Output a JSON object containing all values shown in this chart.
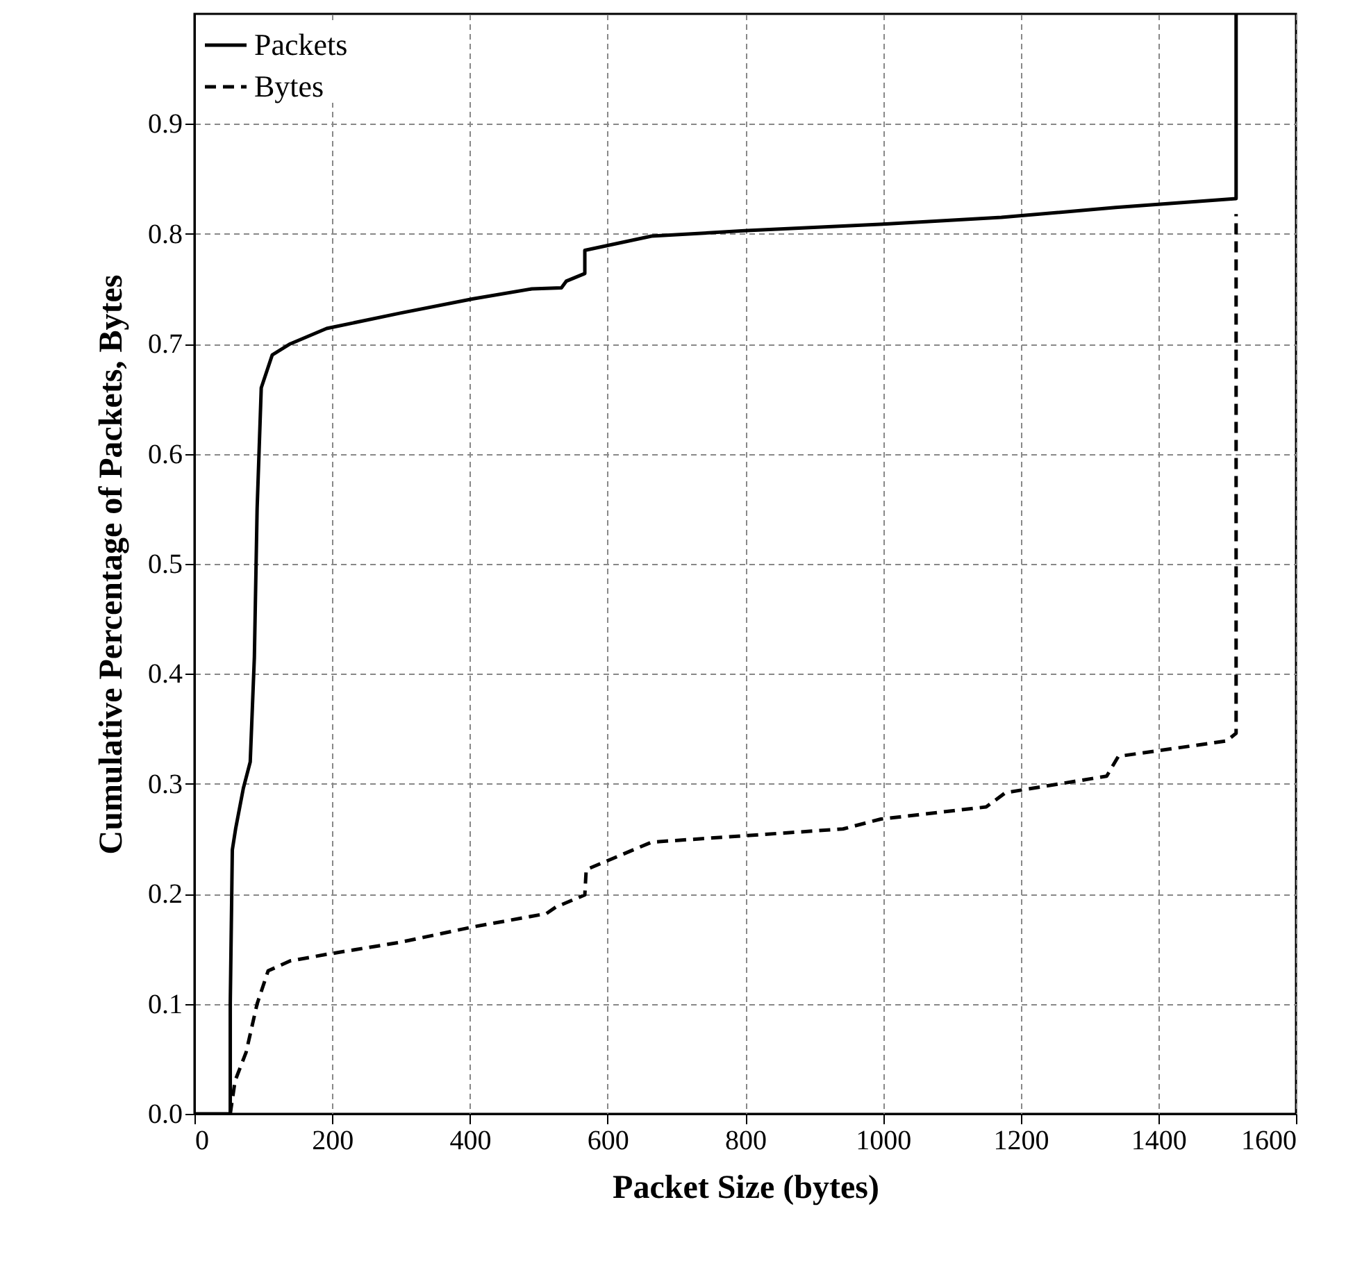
{
  "chart_data": {
    "type": "line",
    "xlabel": "Packet Size (bytes)",
    "ylabel": "Cumulative Percentage of Packets, Bytes",
    "xlim": [
      0,
      1600
    ],
    "ylim": [
      0,
      1
    ],
    "xticks": [
      0,
      200,
      400,
      600,
      800,
      1000,
      1200,
      1400,
      1600
    ],
    "yticks": [
      {
        "value": 0,
        "label": "0.0"
      },
      0.1,
      0.2,
      0.3,
      0.4,
      0.5,
      0.6,
      0.7,
      0.8,
      0.9
    ],
    "grid": true,
    "legend": "top left",
    "marker": "none",
    "series": [
      {
        "name": "Packets",
        "color": "#000000",
        "line_style": "solid",
        "x": [
          0,
          52,
          52,
          55,
          60,
          71,
          81,
          87,
          91,
          97,
          113,
          139,
          192,
          299,
          405,
          490,
          533,
          540,
          567,
          567,
          664,
          803,
          1005,
          1172,
          1338,
          1513,
          1513
        ],
        "values": [
          0,
          0,
          0.1,
          0.24,
          0.26,
          0.296,
          0.32,
          0.415,
          0.55,
          0.66,
          0.69,
          0.7,
          0.714,
          0.728,
          0.741,
          0.75,
          0.751,
          0.757,
          0.764,
          0.785,
          0.798,
          0.803,
          0.809,
          0.815,
          0.824,
          0.832,
          1
        ]
      },
      {
        "name": "Bytes",
        "color": "#000000",
        "line_style": "dashed",
        "x": [
          52,
          59,
          75,
          91,
          107,
          139,
          192,
          299,
          405,
          511,
          525,
          567,
          569,
          664,
          803,
          942,
          997,
          1150,
          1178,
          1325,
          1342,
          1499,
          1513,
          1513
        ],
        "values": [
          0,
          0.03,
          0.056,
          0.1,
          0.13,
          0.139,
          0.145,
          0.156,
          0.17,
          0.182,
          0.188,
          0.199,
          0.222,
          0.247,
          0.253,
          0.259,
          0.268,
          0.279,
          0.292,
          0.307,
          0.325,
          0.339,
          0.346,
          0.818
        ]
      }
    ]
  }
}
